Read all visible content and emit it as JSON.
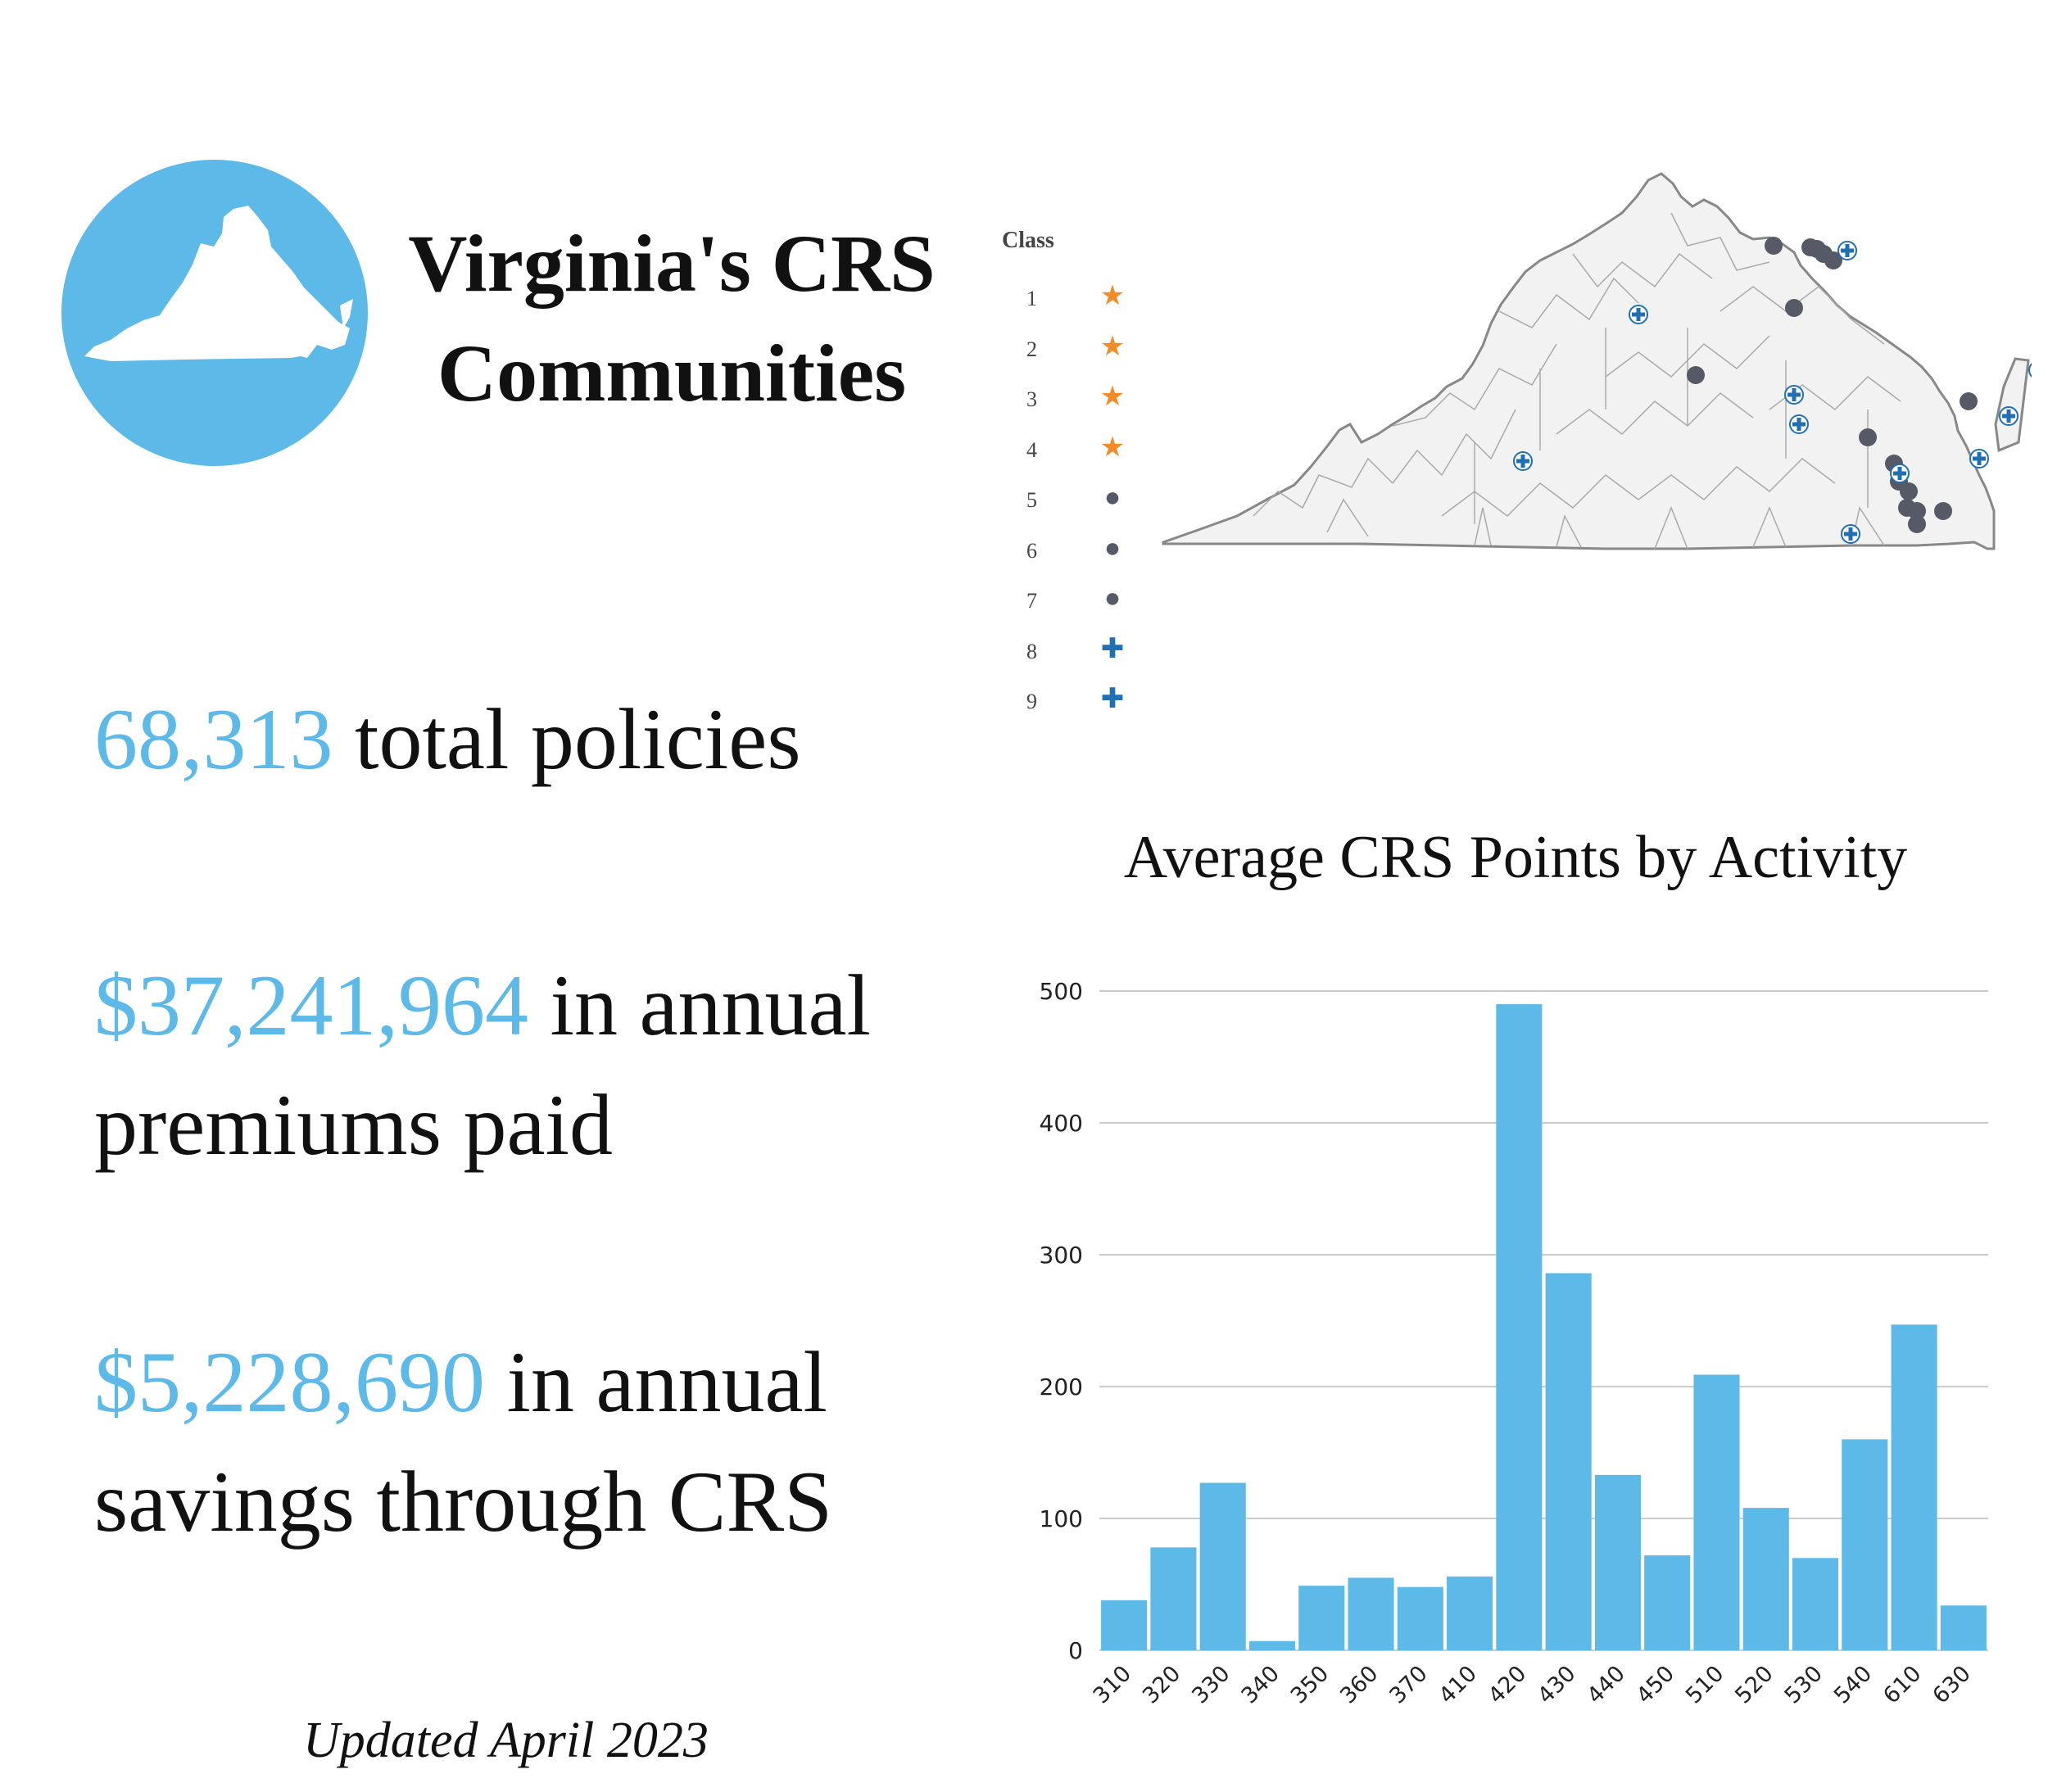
{
  "header": {
    "title_line1": "Virginia's CRS",
    "title_line2": "Communities"
  },
  "stats": [
    {
      "number": "68,313",
      "text": " total policies"
    },
    {
      "number": "$37,241,964",
      "text": " in annual premiums paid"
    },
    {
      "number": "$5,228,690",
      "text": " in annual savings through CRS"
    }
  ],
  "footer": {
    "updated": "Updated April 2023"
  },
  "map": {
    "legend_title": "Class",
    "legend": [
      {
        "label": "1",
        "symbol": "star"
      },
      {
        "label": "2",
        "symbol": "star"
      },
      {
        "label": "3",
        "symbol": "star"
      },
      {
        "label": "4",
        "symbol": "star"
      },
      {
        "label": "5",
        "symbol": "dot"
      },
      {
        "label": "6",
        "symbol": "dot"
      },
      {
        "label": "7",
        "symbol": "dot"
      },
      {
        "label": "8",
        "symbol": "cross"
      },
      {
        "label": "9",
        "symbol": "cross"
      }
    ],
    "colors": {
      "star": "#f28c28",
      "dot": "#555a66",
      "cross": "#1f6fb2",
      "state_fill": "#f2f2f2",
      "state_stroke": "#888888"
    }
  },
  "chart_data": {
    "type": "bar",
    "title": "Average CRS Points by Activity",
    "categories": [
      "310",
      "320",
      "330",
      "340",
      "350",
      "360",
      "370",
      "410",
      "420",
      "430",
      "440",
      "450",
      "510",
      "520",
      "530",
      "540",
      "610",
      "630"
    ],
    "values": [
      38,
      78,
      127,
      7,
      49,
      55,
      48,
      56,
      490,
      286,
      133,
      72,
      209,
      108,
      70,
      160,
      247,
      34
    ],
    "ylim": [
      0,
      500
    ],
    "yticks": [
      0,
      100,
      200,
      300,
      400,
      500
    ],
    "xlabel": "",
    "ylabel": "",
    "grid": true,
    "bar_color": "#5db9e7"
  }
}
